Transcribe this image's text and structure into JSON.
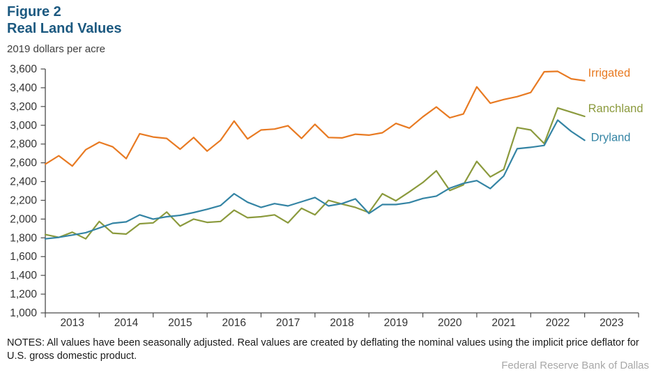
{
  "header": {
    "figure_label": "Figure 2",
    "title": "Real Land Values",
    "unit": "2019 dollars per acre"
  },
  "notes": {
    "text": "NOTES: All values have been seasonally adjusted. Real values are created by deflating the nominal values using the implicit price deflator for U.S. gross domestic product."
  },
  "footer": {
    "text": "Federal Reserve Bank of Dallas"
  },
  "colors": {
    "title_blue": "#1c5980",
    "axis": "#4a4a4a",
    "tick_text": "#333333",
    "subtitle_text": "#3e3e3e",
    "notes_text": "#1a1a1a",
    "footer_text": "#a8a8a8"
  },
  "chart_data": {
    "type": "line",
    "title": "Figure 2",
    "subtitle": "Real Land Values",
    "ylabel": "2019 dollars per acre",
    "grid": false,
    "legend_position": "right-of-line-ends",
    "y_axis": {
      "min": 1000,
      "max": 3600,
      "step": 200,
      "tick_labels": [
        "1,000",
        "1,200",
        "1,400",
        "1,600",
        "1,800",
        "2,000",
        "2,200",
        "2,400",
        "2,600",
        "2,800",
        "3,000",
        "3,200",
        "3,400",
        "3,600"
      ]
    },
    "x_axis": {
      "range_years": [
        2013,
        2024
      ],
      "tick_labels": [
        "2013",
        "2014",
        "2015",
        "2016",
        "2017",
        "2018",
        "2019",
        "2020",
        "2021",
        "2022",
        "2023"
      ]
    },
    "frequency": "quarterly",
    "categories": [
      "2013Q1",
      "2013Q2",
      "2013Q3",
      "2013Q4",
      "2014Q1",
      "2014Q2",
      "2014Q3",
      "2014Q4",
      "2015Q1",
      "2015Q2",
      "2015Q3",
      "2015Q4",
      "2016Q1",
      "2016Q2",
      "2016Q3",
      "2016Q4",
      "2017Q1",
      "2017Q2",
      "2017Q3",
      "2017Q4",
      "2018Q1",
      "2018Q2",
      "2018Q3",
      "2018Q4",
      "2019Q1",
      "2019Q2",
      "2019Q3",
      "2019Q4",
      "2020Q1",
      "2020Q2",
      "2020Q3",
      "2020Q4",
      "2021Q1",
      "2021Q2",
      "2021Q3",
      "2021Q4",
      "2022Q1",
      "2022Q2",
      "2022Q3",
      "2022Q4",
      "2023Q1"
    ],
    "series": [
      {
        "name": "Irrigated",
        "color": "#e87a22",
        "values": [
          2585,
          2675,
          2565,
          2740,
          2820,
          2770,
          2645,
          2910,
          2875,
          2860,
          2745,
          2870,
          2725,
          2840,
          3045,
          2855,
          2950,
          2960,
          2995,
          2860,
          3010,
          2870,
          2865,
          2905,
          2895,
          2920,
          3020,
          2970,
          3090,
          3195,
          3080,
          3120,
          3410,
          3235,
          3275,
          3305,
          3350,
          3570,
          3575,
          3495,
          3475
        ]
      },
      {
        "name": "Ranchland",
        "color": "#8b9a3d",
        "values": [
          1835,
          1805,
          1860,
          1790,
          1975,
          1850,
          1840,
          1950,
          1960,
          2075,
          1925,
          2000,
          1965,
          1975,
          2095,
          2015,
          2025,
          2045,
          1960,
          2115,
          2045,
          2200,
          2160,
          2125,
          2070,
          2270,
          2195,
          2290,
          2390,
          2515,
          2305,
          2365,
          2615,
          2450,
          2530,
          2975,
          2950,
          2805,
          3185,
          3140,
          3095
        ]
      },
      {
        "name": "Dryland",
        "color": "#3484a4",
        "values": [
          1790,
          1805,
          1830,
          1855,
          1905,
          1955,
          1970,
          2045,
          2000,
          2025,
          2040,
          2070,
          2105,
          2145,
          2270,
          2180,
          2125,
          2165,
          2140,
          2185,
          2230,
          2140,
          2165,
          2215,
          2060,
          2155,
          2155,
          2175,
          2220,
          2245,
          2330,
          2380,
          2410,
          2325,
          2460,
          2750,
          2765,
          2785,
          3055,
          2935,
          2840
        ]
      }
    ]
  }
}
